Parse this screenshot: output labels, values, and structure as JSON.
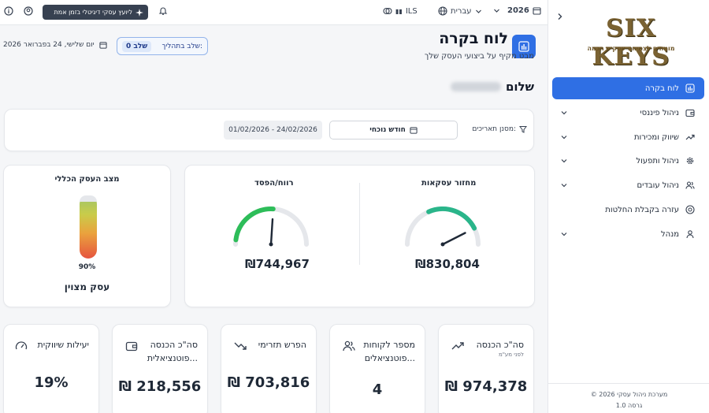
{
  "topbar": {
    "year": "2026",
    "language": "עברית",
    "currency": "ILS",
    "ai_button": "ליועץ עסקי דיגיטלי בזמן אמת"
  },
  "sidebar": {
    "logo_text": "SIX KEYS",
    "logo_sub": "מומחים לצמיחה עסקית חכמה",
    "items": [
      {
        "label": "לוח בקרה",
        "icon": "chart-icon",
        "active": true
      },
      {
        "label": "ניהול פיננסי",
        "icon": "wallet-icon"
      },
      {
        "label": "שיווק ומכירות",
        "icon": "trend-up-icon"
      },
      {
        "label": "ניהול ותפעול",
        "icon": "gear-icon"
      },
      {
        "label": "ניהול עובדים",
        "icon": "users-icon"
      },
      {
        "label": "עזרה בקבלת החלטות",
        "icon": "help-icon"
      },
      {
        "label": "מנהל",
        "icon": "user-icon"
      }
    ],
    "footer_line1": "© 2026 מערכת ניהול עסקי",
    "footer_line2": "גרסה 1.0"
  },
  "header": {
    "title": "לוח בקרה",
    "subtitle": "מבט מקיף על ביצועי העסק שלך",
    "stage_label": "שלב בתהליך:",
    "stage_value": "שלב 0",
    "date": "יום שלישי, 24 בפברואר 2026",
    "greeting": "שלום"
  },
  "filter": {
    "label": "מסנן תאריכים:",
    "select_value": "חודש נוכחי",
    "range": "01/02/2026 - 24/02/2026"
  },
  "gauges": {
    "turnover": {
      "title": "מחזור עסקאות",
      "value": "₪830,804",
      "fraction": 0.85
    },
    "profit": {
      "title": "רווח/הפסד",
      "value": "₪744,967",
      "fraction": 0.52
    }
  },
  "health": {
    "title": "מצב העסק הכללי",
    "percent": "90%",
    "status": "עסק מצוין",
    "level": 0.9
  },
  "kpis": [
    {
      "title": "סה\"כ הכנסה",
      "sub": "לפני מע\"מ",
      "value": "₪ 974,378",
      "icon": "trend-up-icon"
    },
    {
      "title": "מספר לקוחות",
      "title2": "פוטנציאלים...",
      "value": "4",
      "icon": "users-icon"
    },
    {
      "title": "הפרש תזרימי",
      "value": "₪ 703,816",
      "icon": "trend-down-icon"
    },
    {
      "title": "סה\"כ הכנסה",
      "title2": "פוטנציאלית...",
      "value": "₪ 218,556",
      "icon": "wallet-icon"
    },
    {
      "title": "יעילות שיווקית",
      "value": "19%",
      "icon": "gauge-icon"
    }
  ],
  "colors": {
    "accent": "#2f6fe4",
    "gauge_green": "#2dbd59",
    "gauge_track": "#e5e7eb",
    "teal": "#2ab58a"
  }
}
